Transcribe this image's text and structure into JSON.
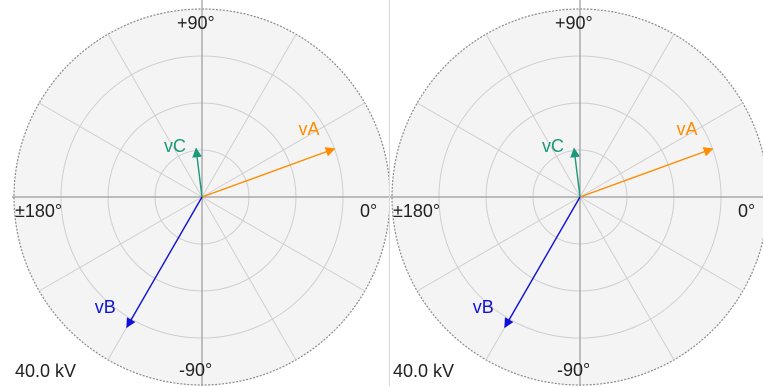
{
  "colors": {
    "phase_a": "#ff8c00",
    "phase_b": "#1010d8",
    "phase_c": "#1a9a7a",
    "dial_fill": "#f4f4f4",
    "grid": "#cfcfcf",
    "axis": "#9a9a9a",
    "rim": "#8a8a8a"
  },
  "panels": [
    {
      "angle_labels": {
        "top": "+90°",
        "bottom": "-90°",
        "left": "±180°",
        "right": "0°"
      },
      "scale_label": "40.0 kV",
      "phasors": [
        {
          "label": "vA",
          "magnitude_pct": 0.75,
          "angle_deg": 20
        },
        {
          "label": "vB",
          "magnitude_pct": 0.8,
          "angle_deg": -120
        },
        {
          "label": "vC",
          "magnitude_pct": 0.26,
          "angle_deg": 97
        }
      ]
    },
    {
      "angle_labels": {
        "top": "+90°",
        "bottom": "-90°",
        "left": "±180°",
        "right": "0°"
      },
      "scale_label": "40.0 kV",
      "phasors": [
        {
          "label": "vA",
          "magnitude_pct": 0.75,
          "angle_deg": 20
        },
        {
          "label": "vB",
          "magnitude_pct": 0.8,
          "angle_deg": -120
        },
        {
          "label": "vC",
          "magnitude_pct": 0.26,
          "angle_deg": 97
        }
      ]
    }
  ]
}
